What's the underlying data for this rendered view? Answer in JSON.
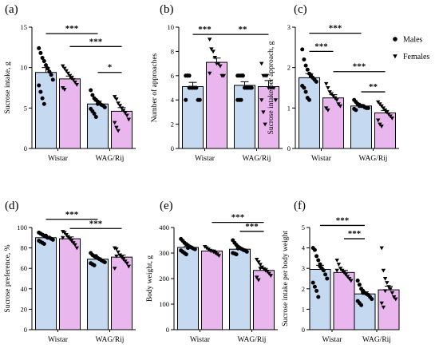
{
  "colors": {
    "males_fill": "#c5d9f1",
    "females_fill": "#e9b6ee",
    "ink": "#000000"
  },
  "legend": {
    "items": [
      {
        "label": "Males",
        "marker": "circle"
      },
      {
        "label": "Females",
        "marker": "triangle-down"
      }
    ]
  },
  "chart_data": [
    {
      "panel": "(a)",
      "type": "bar",
      "ylabel": "Sucrose intake, g",
      "categories": [
        "Wistar",
        "WAG/Rij"
      ],
      "ylim": [
        0,
        15
      ],
      "yticks": [
        0,
        5,
        10,
        15
      ],
      "series": [
        {
          "name": "Males",
          "means": [
            9.4,
            5.5
          ],
          "sems": [
            0.6,
            0.35
          ],
          "points": [
            [
              12.4,
              11.8,
              11.2,
              10.8,
              10.3,
              9.9,
              9.5,
              9.1,
              8.5,
              7.8,
              7.0,
              6.2,
              5.5
            ],
            [
              7.2,
              6.6,
              6.2,
              6.0,
              5.8,
              5.6,
              5.4,
              5.3,
              5.1,
              4.9,
              4.6,
              4.3,
              3.9,
              5.5
            ]
          ]
        },
        {
          "name": "Females",
          "means": [
            8.6,
            4.6
          ],
          "sems": [
            0.35,
            0.45
          ],
          "points": [
            [
              10.2,
              9.9,
              9.6,
              9.3,
              9.0,
              8.7,
              8.5,
              8.2,
              7.9,
              7.5,
              7.3
            ],
            [
              6.4,
              6.1,
              5.6,
              5.3,
              5.0,
              4.7,
              4.4,
              4.1,
              3.6,
              3.2,
              2.6,
              2.2
            ]
          ]
        }
      ],
      "significance": [
        {
          "from": [
            0,
            0
          ],
          "to": [
            1,
            0
          ],
          "label": "***",
          "level": 14.2
        },
        {
          "from": [
            0,
            1
          ],
          "to": [
            1,
            1
          ],
          "label": "***",
          "level": 12.6
        },
        {
          "from": [
            1,
            0
          ],
          "to": [
            1,
            1
          ],
          "label": "*",
          "level": 9.4
        }
      ]
    },
    {
      "panel": "(b)",
      "type": "bar",
      "ylabel": "Number of approaches",
      "categories": [
        "Wistar",
        "WAG/Rij"
      ],
      "ylim": [
        0,
        10
      ],
      "yticks": [
        0,
        2,
        4,
        6,
        8,
        10
      ],
      "series": [
        {
          "name": "Males",
          "means": [
            5.1,
            5.2
          ],
          "sems": [
            0.35,
            0.3
          ],
          "points": [
            [
              6.0,
              6.0,
              6.0,
              5.0,
              5.0,
              5.0,
              5.0,
              4.0,
              4.0,
              4.0,
              6.0,
              5.0
            ],
            [
              6.0,
              6.0,
              6.0,
              6.0,
              5.0,
              5.0,
              5.0,
              5.0,
              5.0,
              4.0,
              4.0,
              4.0,
              6.0
            ]
          ]
        },
        {
          "name": "Females",
          "means": [
            7.1,
            5.1
          ],
          "sems": [
            0.35,
            0.5
          ],
          "points": [
            [
              9.0,
              8.2,
              8.0,
              7.5,
              7.0,
              7.0,
              6.8,
              6.0,
              6.0,
              6.2
            ],
            [
              7.0,
              6.0,
              6.0,
              6.0,
              5.0,
              5.0,
              5.0,
              5.0,
              4.0,
              4.0,
              3.0,
              2.0,
              6.0
            ]
          ]
        }
      ],
      "significance": [
        {
          "from": [
            0,
            0
          ],
          "to": [
            0,
            1
          ],
          "label": "***",
          "level": 9.4
        },
        {
          "from": [
            0,
            1
          ],
          "to": [
            1,
            1
          ],
          "label": "**",
          "level": 9.4
        }
      ]
    },
    {
      "panel": "(c)",
      "type": "bar",
      "ylabel": "Sucrose intake per approach, g",
      "categories": [
        "Wistar",
        "WAG/Rij"
      ],
      "ylim": [
        0,
        3
      ],
      "yticks": [
        0,
        1,
        2,
        3
      ],
      "series": [
        {
          "name": "Males",
          "means": [
            1.75,
            1.05
          ],
          "sems": [
            0.1,
            0.03
          ],
          "points": [
            [
              2.45,
              2.2,
              2.05,
              1.95,
              1.85,
              1.8,
              1.75,
              1.7,
              1.65,
              1.55,
              1.5,
              1.4,
              1.25,
              1.2
            ],
            [
              1.2,
              1.15,
              1.1,
              1.08,
              1.05,
              1.05,
              1.02,
              1.0,
              1.0,
              0.98,
              0.95,
              1.1,
              1.05
            ]
          ]
        },
        {
          "name": "Females",
          "means": [
            1.25,
            0.88
          ],
          "sems": [
            0.08,
            0.06
          ],
          "points": [
            [
              1.6,
              1.5,
              1.4,
              1.35,
              1.3,
              1.25,
              1.2,
              1.1,
              1.05,
              1.0,
              0.95
            ],
            [
              1.15,
              1.1,
              1.05,
              1.0,
              0.95,
              0.9,
              0.85,
              0.8,
              0.75,
              0.7,
              0.6,
              0.55
            ]
          ]
        }
      ],
      "significance": [
        {
          "from": [
            0,
            0
          ],
          "to": [
            1,
            0
          ],
          "label": "***",
          "level": 2.85
        },
        {
          "from": [
            0,
            0
          ],
          "to": [
            0,
            1
          ],
          "label": "***",
          "level": 2.4
        },
        {
          "from": [
            0,
            1
          ],
          "to": [
            1,
            1
          ],
          "label": "***",
          "level": 1.9
        },
        {
          "from": [
            1,
            0
          ],
          "to": [
            1,
            1
          ],
          "label": "**",
          "level": 1.4
        }
      ]
    },
    {
      "panel": "(d)",
      "type": "bar",
      "ylabel": "Sucrose preference, %",
      "categories": [
        "Wistar",
        "WAG/Rij"
      ],
      "ylim": [
        0,
        100
      ],
      "yticks": [
        0,
        20,
        40,
        60,
        80,
        100
      ],
      "series": [
        {
          "name": "Males",
          "means": [
            90,
            69
          ],
          "sems": [
            1.2,
            1.2
          ],
          "points": [
            [
              95,
              94,
              93,
              92,
              91,
              90,
              90,
              89,
              88,
              87,
              86,
              85,
              84,
              92
            ],
            [
              75,
              73,
              72,
              71,
              70,
              69,
              68,
              67,
              66,
              65,
              64,
              63,
              72,
              70
            ]
          ]
        },
        {
          "name": "Females",
          "means": [
            89,
            71
          ],
          "sems": [
            1.8,
            2.0
          ],
          "points": [
            [
              96,
              95,
              93,
              91,
              89,
              87,
              85,
              83,
              80,
              90
            ],
            [
              80,
              79,
              76,
              73,
              71,
              69,
              67,
              65,
              62,
              60,
              72
            ]
          ]
        }
      ],
      "significance": [
        {
          "from": [
            0,
            0
          ],
          "to": [
            1,
            0
          ],
          "label": "***",
          "level": 108
        },
        {
          "from": [
            0,
            1
          ],
          "to": [
            1,
            1
          ],
          "label": "***",
          "level": 99
        }
      ]
    },
    {
      "panel": "(e)",
      "type": "bar",
      "ylabel": "Body weight, g",
      "categories": [
        "Wistar",
        "WAG/Rij"
      ],
      "ylim": [
        0,
        400
      ],
      "yticks": [
        0,
        100,
        200,
        300,
        400
      ],
      "series": [
        {
          "name": "Males",
          "means": [
            322,
            315
          ],
          "sems": [
            5,
            4
          ],
          "points": [
            [
              355,
              348,
              340,
              335,
              330,
              325,
              322,
              318,
              315,
              310,
              305,
              300,
              295,
              320
            ],
            [
              350,
              340,
              332,
              325,
              320,
              316,
              312,
              310,
              305,
              300,
              298,
              295,
              318
            ]
          ]
        },
        {
          "name": "Females",
          "means": [
            308,
            232
          ],
          "sems": [
            4,
            8
          ],
          "points": [
            [
              325,
              320,
              315,
              310,
              308,
              305,
              300,
              296,
              290
            ],
            [
              275,
              265,
              255,
              245,
              238,
              232,
              228,
              220,
              212,
              205,
              195,
              240
            ]
          ]
        }
      ],
      "significance": [
        {
          "from": [
            0,
            1
          ],
          "to": [
            1,
            1
          ],
          "label": "***",
          "level": 420
        },
        {
          "from": [
            1,
            0
          ],
          "to": [
            1,
            1
          ],
          "label": "***",
          "level": 385
        }
      ]
    },
    {
      "panel": "(f)",
      "type": "bar",
      "ylabel": "Sucrose intake per body weight",
      "categories": [
        "Wistar",
        "WAG/Rij"
      ],
      "ylim": [
        0,
        5
      ],
      "yticks": [
        0,
        1,
        2,
        3,
        4,
        5
      ],
      "series": [
        {
          "name": "Males",
          "means": [
            2.95,
            1.75
          ],
          "sems": [
            0.2,
            0.1
          ],
          "points": [
            [
              4.0,
              3.9,
              3.6,
              3.4,
              3.2,
              3.0,
              2.9,
              2.7,
              2.5,
              2.3,
              2.1,
              1.9,
              1.6,
              3.1
            ],
            [
              2.4,
              2.2,
              2.0,
              1.9,
              1.8,
              1.75,
              1.7,
              1.6,
              1.5,
              1.4,
              1.3,
              1.2,
              1.8
            ]
          ]
        },
        {
          "name": "Females",
          "means": [
            2.8,
            1.95
          ],
          "sems": [
            0.1,
            0.18
          ],
          "points": [
            [
              3.4,
              3.2,
              3.0,
              2.9,
              2.8,
              2.7,
              2.6,
              2.5,
              2.4,
              2.9
            ],
            [
              4.0,
              2.9,
              2.5,
              2.3,
              2.1,
              2.0,
              1.8,
              1.6,
              1.5,
              1.3,
              1.1,
              1.9
            ]
          ]
        }
      ],
      "significance": [
        {
          "from": [
            0,
            0
          ],
          "to": [
            1,
            0
          ],
          "label": "***",
          "level": 5.1
        },
        {
          "from": [
            0,
            1
          ],
          "to": [
            1,
            0
          ],
          "label": "***",
          "level": 4.45
        }
      ]
    }
  ]
}
